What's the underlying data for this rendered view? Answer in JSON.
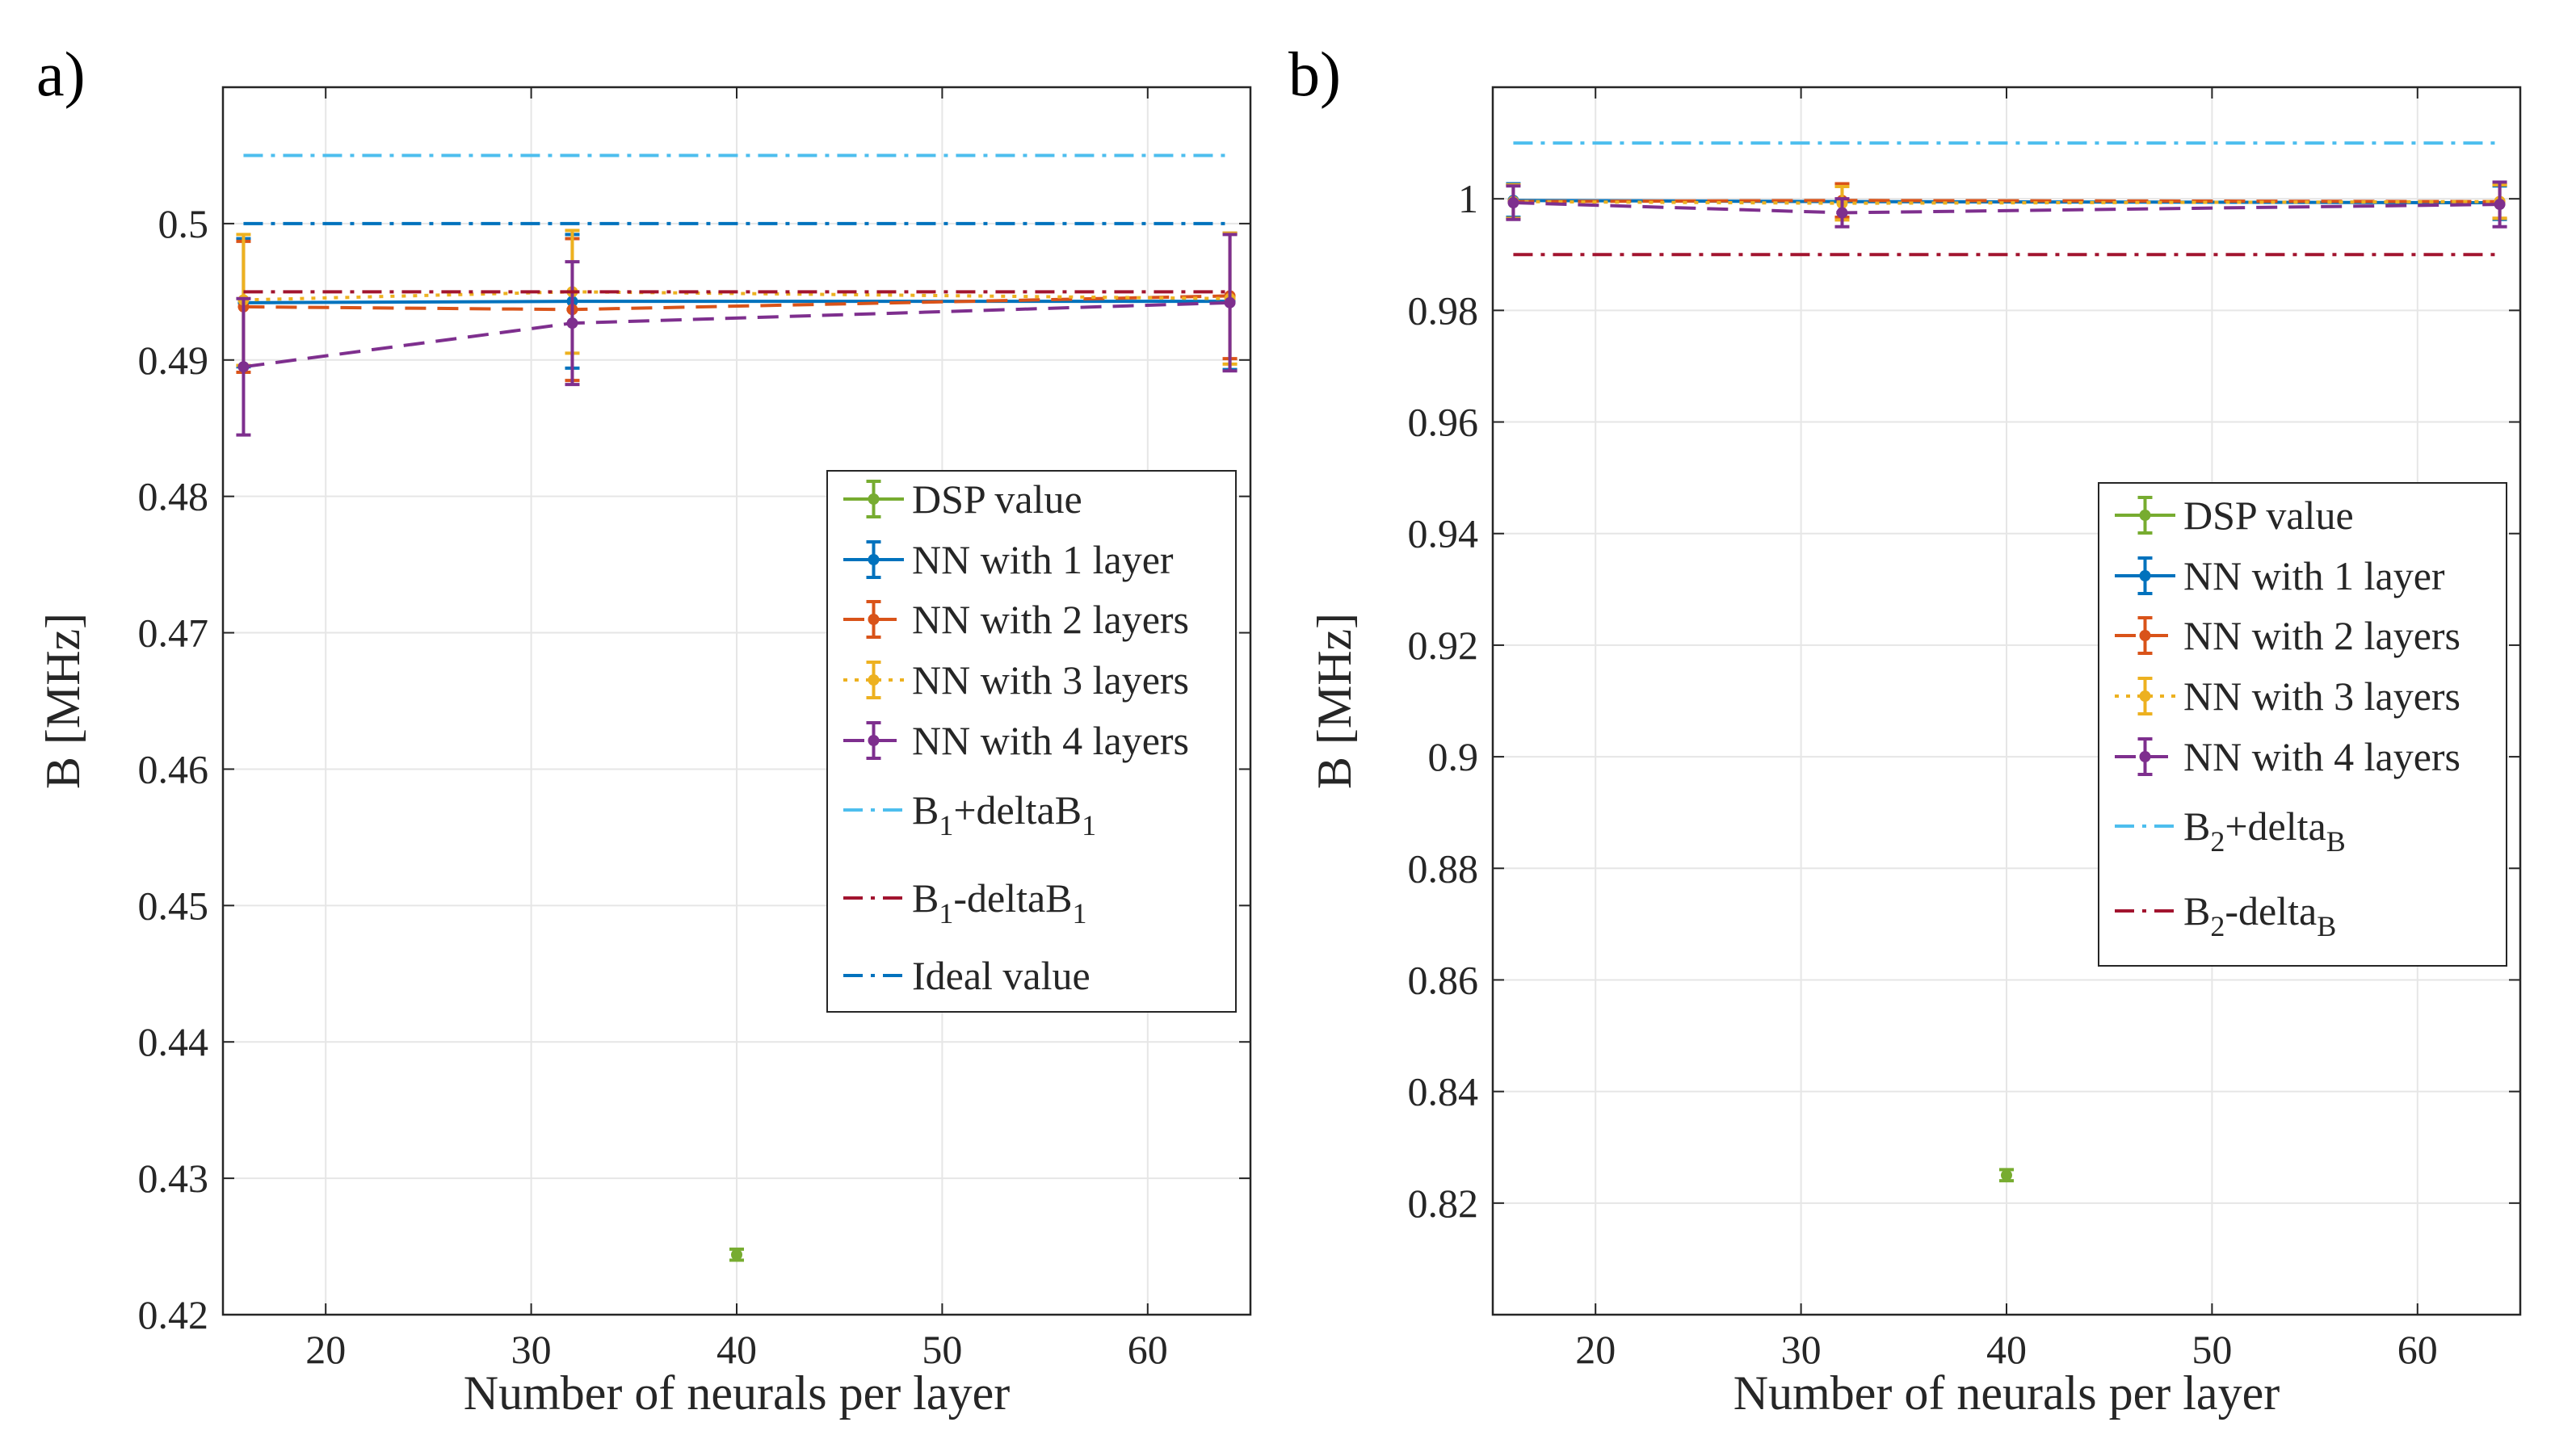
{
  "chart_data": [
    {
      "panel": "a)",
      "type": "line",
      "xlabel": "Number of neurals per layer",
      "ylabel": "B [MHz]",
      "xlim": [
        15,
        65
      ],
      "ylim": [
        0.42,
        0.51
      ],
      "xticks": [
        "20",
        "30",
        "40",
        "50",
        "60"
      ],
      "yticks": [
        "0.42",
        "0.43",
        "0.44",
        "0.45",
        "0.46",
        "0.47",
        "0.48",
        "0.49",
        "0.5"
      ],
      "grid": true,
      "legend_position": "right-middle",
      "series": [
        {
          "name": "DSP value",
          "color": "#77ac30",
          "style": "solid",
          "marker": "*",
          "x": [
            40
          ],
          "y": [
            0.4244
          ],
          "err": [
            0.0004
          ]
        },
        {
          "name": "NN with 1 layer",
          "color": "#0072bd",
          "style": "solid",
          "marker": "*",
          "x": [
            16,
            32,
            64
          ],
          "y": [
            0.4942,
            0.4943,
            0.4943
          ],
          "err": [
            0.0047,
            0.0049,
            0.005
          ]
        },
        {
          "name": "NN with 2 layers",
          "color": "#d95319",
          "style": "dashed",
          "marker": "*",
          "x": [
            16,
            32,
            64
          ],
          "y": [
            0.4939,
            0.4937,
            0.4947
          ],
          "err": [
            0.0048,
            0.0052,
            0.0046
          ]
        },
        {
          "name": "NN with 3 layers",
          "color": "#edb120",
          "style": "dotted",
          "marker": "*",
          "x": [
            16,
            32,
            64
          ],
          "y": [
            0.4944,
            0.495,
            0.4945
          ],
          "err": [
            0.0048,
            0.0045,
            0.0048
          ]
        },
        {
          "name": "NN with 4 layers",
          "color": "#7e2f8e",
          "style": "dashed",
          "marker": "*",
          "x": [
            16,
            32,
            64
          ],
          "y": [
            0.4895,
            0.4927,
            0.4942
          ],
          "err": [
            0.005,
            0.0045,
            0.005
          ]
        },
        {
          "name_parts": [
            "B",
            "1",
            "+deltaB",
            "1"
          ],
          "color": "#4dbeee",
          "style": "dashdot",
          "x": [
            16,
            64
          ],
          "y": [
            0.505,
            0.505
          ]
        },
        {
          "name_parts": [
            "B",
            "1",
            "-deltaB",
            "1"
          ],
          "color": "#a2142f",
          "style": "dashdot",
          "x": [
            16,
            64
          ],
          "y": [
            0.495,
            0.495
          ]
        },
        {
          "name": "Ideal value",
          "color": "#0072bd",
          "style": "dashdot",
          "x": [
            16,
            64
          ],
          "y": [
            0.5,
            0.5
          ]
        }
      ]
    },
    {
      "panel": "b)",
      "type": "line",
      "xlabel": "Number of neurals per layer",
      "ylabel": "B [MHz]",
      "xlim": [
        15,
        65
      ],
      "ylim": [
        0.8,
        1.02
      ],
      "xticks": [
        "20",
        "30",
        "40",
        "50",
        "60"
      ],
      "yticks": [
        "0.82",
        "0.84",
        "0.86",
        "0.88",
        "0.9",
        "0.92",
        "0.94",
        "0.96",
        "0.98",
        "1"
      ],
      "grid": true,
      "legend_position": "right-middle",
      "series": [
        {
          "name": "DSP value",
          "color": "#77ac30",
          "style": "solid",
          "marker": "*",
          "x": [
            40
          ],
          "y": [
            0.825
          ],
          "err": [
            0.001
          ]
        },
        {
          "name": "NN with 1 layer",
          "color": "#0072bd",
          "style": "solid",
          "marker": "*",
          "x": [
            16,
            32,
            64
          ],
          "y": [
            0.9997,
            0.9995,
            0.9993
          ],
          "err": [
            0.003,
            0.003,
            0.003
          ]
        },
        {
          "name": "NN with 2 layers",
          "color": "#d95319",
          "style": "dashed",
          "marker": "*",
          "x": [
            16,
            32,
            64
          ],
          "y": [
            0.9995,
            0.9997,
            0.9995
          ],
          "err": [
            0.003,
            0.003,
            0.003
          ]
        },
        {
          "name": "NN with 3 layers",
          "color": "#edb120",
          "style": "dotted",
          "marker": "*",
          "x": [
            16,
            32,
            64
          ],
          "y": [
            0.9995,
            0.9992,
            0.9995
          ],
          "err": [
            0.003,
            0.003,
            0.003
          ]
        },
        {
          "name": "NN with 4 layers",
          "color": "#7e2f8e",
          "style": "dashed",
          "marker": "*",
          "x": [
            16,
            32,
            64
          ],
          "y": [
            0.9993,
            0.9975,
            0.999
          ],
          "err": [
            0.003,
            0.0025,
            0.004
          ]
        },
        {
          "name_parts": [
            "B",
            "2",
            "+delta",
            "B"
          ],
          "color": "#4dbeee",
          "style": "dashdot",
          "x": [
            16,
            64
          ],
          "y": [
            1.01,
            1.01
          ]
        },
        {
          "name_parts": [
            "B",
            "2",
            "-delta",
            "B"
          ],
          "color": "#a2142f",
          "style": "dashdot",
          "x": [
            16,
            64
          ],
          "y": [
            0.99,
            0.99
          ]
        }
      ]
    }
  ]
}
